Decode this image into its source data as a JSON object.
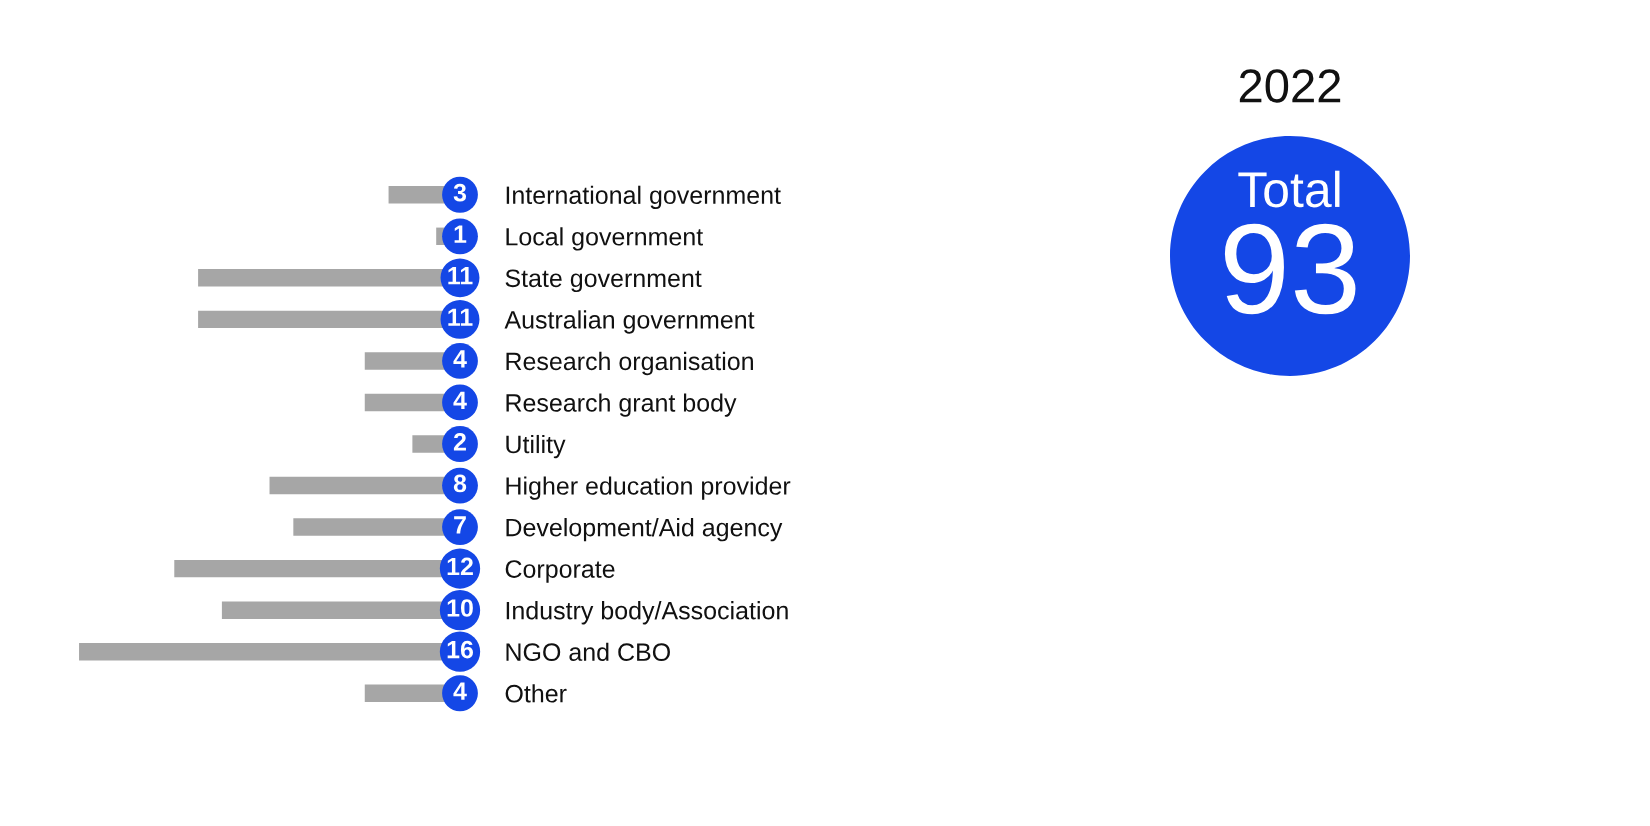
{
  "chart_data": {
    "type": "bar",
    "title": "2022",
    "orientation": "horizontal",
    "annotations": [
      "Total",
      "93"
    ],
    "categories": [
      "International government",
      "Local government",
      "State government",
      "Australian government",
      "Research organisation",
      "Research grant body",
      "Utility",
      "Higher education provider",
      "Development/Aid agency",
      "Corporate",
      "Industry body/Association",
      "NGO and CBO",
      "Other"
    ],
    "values": [
      3,
      1,
      11,
      11,
      4,
      4,
      2,
      8,
      7,
      12,
      10,
      16,
      4
    ],
    "color": "#a6a6a6",
    "data_labels": true
  }
}
